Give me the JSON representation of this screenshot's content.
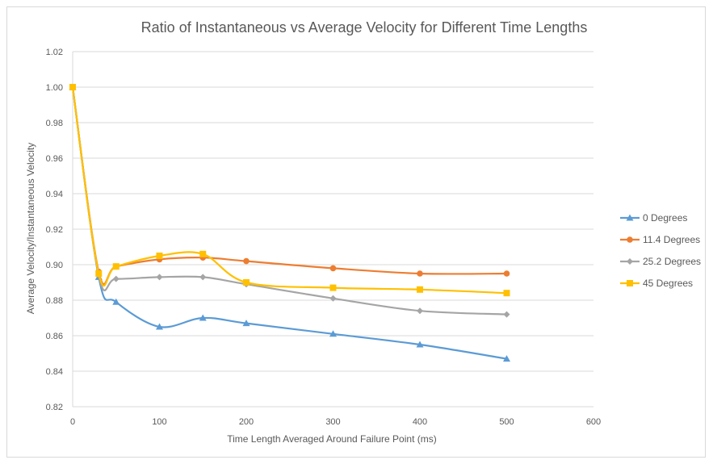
{
  "chart_data": {
    "type": "line",
    "title": "Ratio of Instantaneous vs Average Velocity for Different Time Lengths",
    "xlabel": "Time Length  Averaged Around Failure Point (ms)",
    "ylabel": "Average Velocity/Instantaneous Velocity",
    "xlim": [
      0,
      600
    ],
    "ylim": [
      0.82,
      1.02
    ],
    "x_ticks": [
      "0",
      "100",
      "200",
      "300",
      "400",
      "500",
      "600"
    ],
    "y_ticks": [
      "0.82",
      "0.84",
      "0.86",
      "0.88",
      "0.90",
      "0.92",
      "0.94",
      "0.96",
      "0.98",
      "1.00",
      "1.02"
    ],
    "grid": "horizontal",
    "legend_position": "right",
    "series": [
      {
        "name": "0 Degrees",
        "color": "#5b9bd5",
        "marker": "triangle",
        "x": [
          0,
          30,
          50,
          100,
          150,
          200,
          300,
          400,
          500
        ],
        "y": [
          1.0,
          0.893,
          0.879,
          0.865,
          0.87,
          0.867,
          0.861,
          0.855,
          0.847
        ]
      },
      {
        "name": "11.4 Degrees",
        "color": "#ed7d31",
        "marker": "circle",
        "x": [
          0,
          30,
          50,
          100,
          150,
          200,
          300,
          400,
          500
        ],
        "y": [
          1.0,
          0.896,
          0.899,
          0.903,
          0.904,
          0.902,
          0.898,
          0.895,
          0.895
        ]
      },
      {
        "name": "25.2 Degrees",
        "color": "#a5a5a5",
        "marker": "diamond",
        "x": [
          0,
          30,
          50,
          100,
          150,
          200,
          300,
          400,
          500
        ],
        "y": [
          1.0,
          0.894,
          0.892,
          0.893,
          0.893,
          0.889,
          0.881,
          0.874,
          0.872
        ]
      },
      {
        "name": "45 Degrees",
        "color": "#ffc000",
        "marker": "square",
        "x": [
          0,
          30,
          50,
          100,
          150,
          200,
          300,
          400,
          500
        ],
        "y": [
          1.0,
          0.895,
          0.899,
          0.905,
          0.906,
          0.89,
          0.887,
          0.886,
          0.884
        ]
      }
    ]
  }
}
